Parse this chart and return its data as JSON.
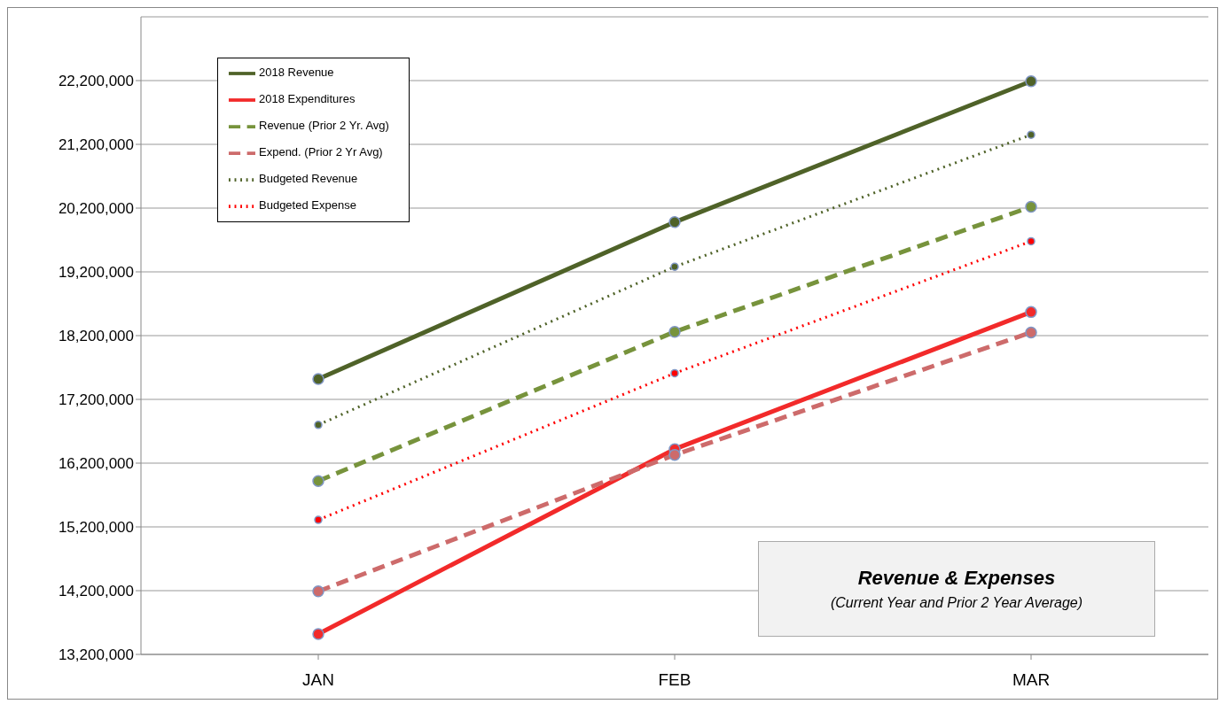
{
  "chart_data": {
    "type": "line",
    "title": "Revenue & Expenses",
    "subtitle": "(Current Year and Prior 2 Year Average)",
    "categories": [
      "JAN",
      "FEB",
      "MAR"
    ],
    "series": [
      {
        "name": "2018 Revenue",
        "color": "#4f6228",
        "line_style": "solid",
        "values": [
          17520000,
          19980000,
          22190000
        ]
      },
      {
        "name": "2018 Expenditures",
        "color": "#f22a2a",
        "line_style": "solid",
        "values": [
          13520000,
          16420000,
          18570000
        ]
      },
      {
        "name": "Revenue (Prior 2 Yr. Avg)",
        "color": "#77933c",
        "line_style": "dashed",
        "values": [
          15920000,
          18260000,
          20220000
        ]
      },
      {
        "name": "Expend. (Prior 2 Yr Avg)",
        "color": "#cd6b6b",
        "line_style": "dashed",
        "values": [
          14190000,
          16330000,
          18250000
        ]
      },
      {
        "name": "Budgeted Revenue",
        "color": "#4f6228",
        "line_style": "dotted",
        "values": [
          16800000,
          19280000,
          21350000
        ]
      },
      {
        "name": "Budgeted Expense",
        "color": "#ff0000",
        "line_style": "dotted",
        "values": [
          15310000,
          17610000,
          19680000
        ]
      }
    ],
    "ylim": [
      13200000,
      23200000
    ],
    "yticks": [
      {
        "value": 13200000,
        "label": "13,200,000"
      },
      {
        "value": 14200000,
        "label": "14,200,000"
      },
      {
        "value": 15200000,
        "label": "15,200,000"
      },
      {
        "value": 16200000,
        "label": "16,200,000"
      },
      {
        "value": 17200000,
        "label": "17,200,000"
      },
      {
        "value": 18200000,
        "label": "18,200,000"
      },
      {
        "value": 19200000,
        "label": "19,200,000"
      },
      {
        "value": 20200000,
        "label": "20,200,000"
      },
      {
        "value": 21200000,
        "label": "21,200,000"
      },
      {
        "value": 22200000,
        "label": "22,200,000"
      }
    ],
    "grid": "y",
    "legend": "top left",
    "marker": "circle"
  }
}
